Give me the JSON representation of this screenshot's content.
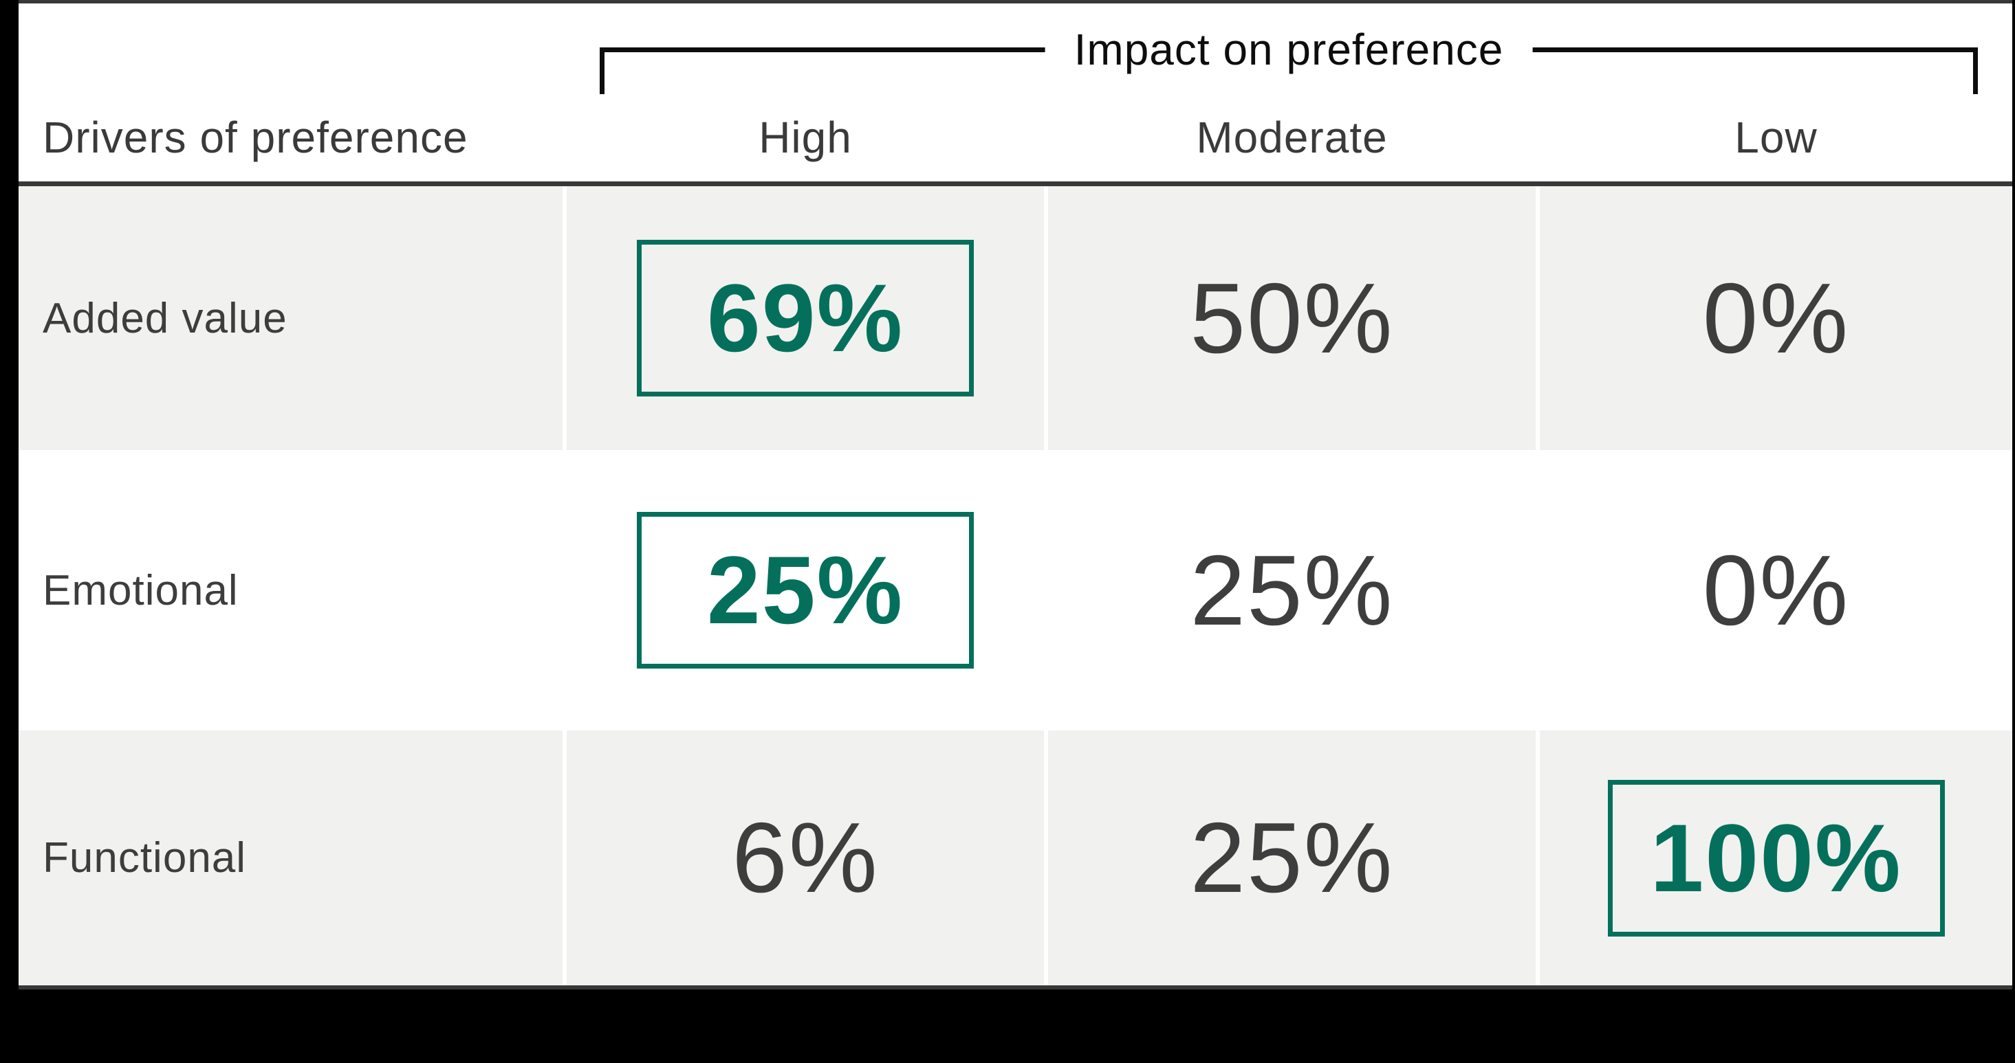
{
  "chart_data": {
    "type": "table",
    "title": "Impact on preference",
    "row_label_header": "Drivers of preference",
    "columns": [
      "High",
      "Moderate",
      "Low"
    ],
    "row_labels": [
      "Added value",
      "Emotional",
      "Functional"
    ],
    "values_pct": [
      [
        69,
        50,
        0
      ],
      [
        25,
        25,
        0
      ],
      [
        6,
        25,
        100
      ]
    ],
    "highlighted_cells": [
      {
        "row": "Added value",
        "column": "High",
        "value_pct": 69
      },
      {
        "row": "Emotional",
        "column": "High",
        "value_pct": 25
      },
      {
        "row": "Functional",
        "column": "Low",
        "value_pct": 100
      }
    ],
    "layout_hints": {
      "row_striping": "alternating gray/white",
      "column_group_bracket": "spans High, Moderate, Low",
      "legend_position": "none"
    }
  },
  "table": {
    "group_header": "Impact on preference",
    "row_header_label": "Drivers of preference",
    "columns": [
      {
        "label": "High"
      },
      {
        "label": "Moderate"
      },
      {
        "label": "Low"
      }
    ],
    "rows": [
      {
        "label": "Added value",
        "values": [
          {
            "text": "69%",
            "highlighted": true
          },
          {
            "text": "50%",
            "highlighted": false
          },
          {
            "text": "0%",
            "highlighted": false
          }
        ]
      },
      {
        "label": "Emotional",
        "values": [
          {
            "text": "25%",
            "highlighted": true
          },
          {
            "text": "25%",
            "highlighted": false
          },
          {
            "text": "0%",
            "highlighted": false
          }
        ]
      },
      {
        "label": "Functional",
        "values": [
          {
            "text": "6%",
            "highlighted": false
          },
          {
            "text": "25%",
            "highlighted": false
          },
          {
            "text": "100%",
            "highlighted": true
          }
        ]
      }
    ]
  },
  "colors": {
    "background": "#000000",
    "panel": "#FFFFFF",
    "row_stripe": "#F1F1EF",
    "text_dark": "#3D3D3D",
    "line_dark": "#383838",
    "bracket_black": "#0D0D0D",
    "highlight_green": "#04705B"
  }
}
